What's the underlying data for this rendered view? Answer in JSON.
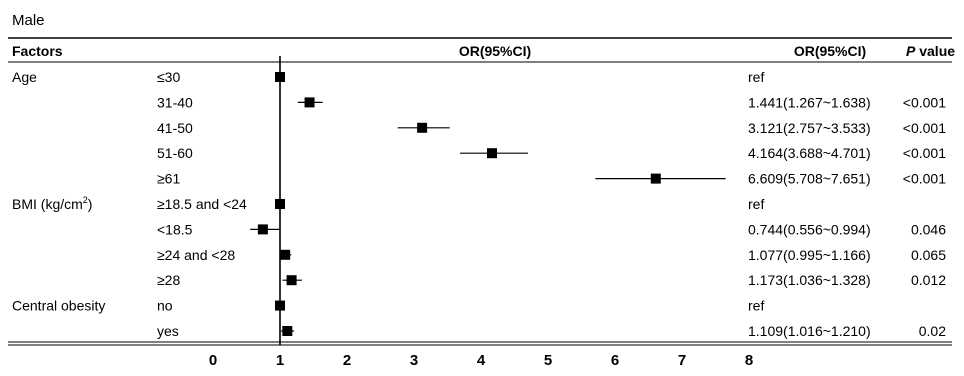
{
  "chart_data": {
    "type": "forest",
    "title": "Male",
    "columns": {
      "factors": "Factors",
      "plot": "OR(95%CI)",
      "or_ci": "OR(95%CI)",
      "p": "P value"
    },
    "groups": [
      {
        "label": "Age",
        "rows": [
          0,
          4
        ]
      },
      {
        "label": "BMI (kg/cm2)",
        "rows": [
          5,
          8
        ]
      },
      {
        "label": "Central obesity",
        "rows": [
          9,
          10
        ]
      }
    ],
    "rows": [
      {
        "level": "≤30",
        "or": 1.0,
        "lo": 1.0,
        "hi": 1.0,
        "or_text": "ref",
        "p": ""
      },
      {
        "level": "31-40",
        "or": 1.441,
        "lo": 1.267,
        "hi": 1.638,
        "or_text": "1.441(1.267~1.638)",
        "p": "<0.001"
      },
      {
        "level": "41-50",
        "or": 3.121,
        "lo": 2.757,
        "hi": 3.533,
        "or_text": "3.121(2.757~3.533)",
        "p": "<0.001"
      },
      {
        "level": "51-60",
        "or": 4.164,
        "lo": 3.688,
        "hi": 4.701,
        "or_text": "4.164(3.688~4.701)",
        "p": "<0.001"
      },
      {
        "level": "≥61",
        "or": 6.609,
        "lo": 5.708,
        "hi": 7.651,
        "or_text": "6.609(5.708~7.651)",
        "p": "<0.001"
      },
      {
        "level": "≥18.5 and <24",
        "or": 1.0,
        "lo": 1.0,
        "hi": 1.0,
        "or_text": "ref",
        "p": ""
      },
      {
        "level": "<18.5",
        "or": 0.744,
        "lo": 0.556,
        "hi": 0.994,
        "or_text": "0.744(0.556~0.994)",
        "p": "0.046"
      },
      {
        "level": "≥24 and <28",
        "or": 1.077,
        "lo": 0.995,
        "hi": 1.166,
        "or_text": "1.077(0.995~1.166)",
        "p": "0.065"
      },
      {
        "level": "≥28",
        "or": 1.173,
        "lo": 1.036,
        "hi": 1.328,
        "or_text": "1.173(1.036~1.328)",
        "p": "0.012"
      },
      {
        "level": "no",
        "or": 1.0,
        "lo": 1.0,
        "hi": 1.0,
        "or_text": "ref",
        "p": ""
      },
      {
        "level": "yes",
        "or": 1.109,
        "lo": 1.016,
        "hi": 1.21,
        "or_text": "1.109(1.016~1.210)",
        "p": "0.02"
      }
    ],
    "x_ticks": [
      0,
      1,
      2,
      3,
      4,
      5,
      6,
      7,
      8
    ],
    "xlim": [
      0,
      8
    ],
    "reference_line": 1
  }
}
